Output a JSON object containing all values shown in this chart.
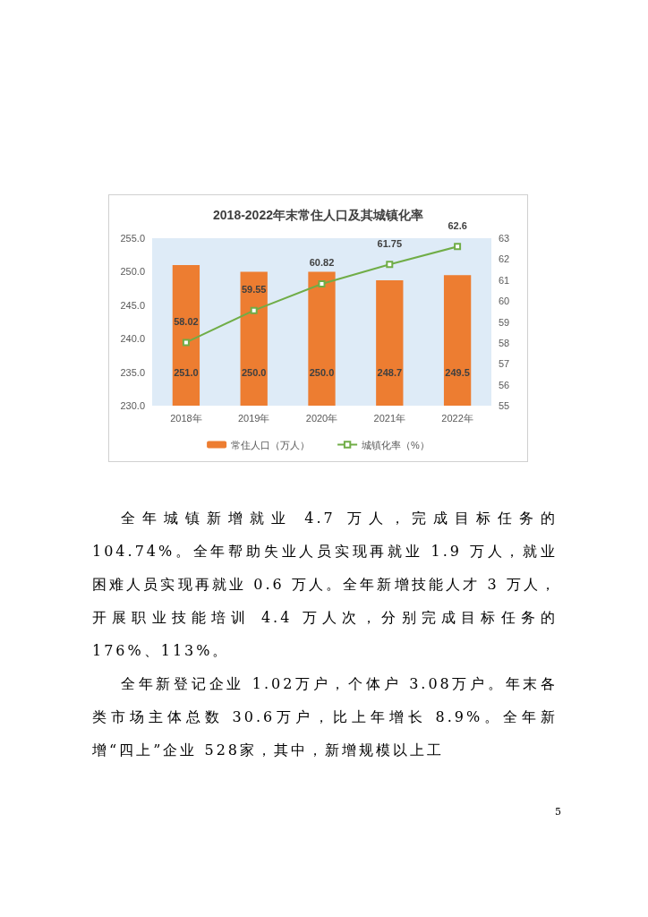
{
  "chart_data": {
    "type": "bar",
    "title": "2018-2022年末常住人口及其城镇化率",
    "categories": [
      "2018年",
      "2019年",
      "2020年",
      "2021年",
      "2022年"
    ],
    "series": [
      {
        "name": "常住人口（万人）",
        "color": "#ed7d31",
        "values": [
          251.0,
          250.0,
          250.0,
          248.7,
          249.5
        ],
        "value_labels": [
          "251.0",
          "250.0",
          "250.0",
          "248.7",
          "249.5"
        ]
      },
      {
        "name": "城镇化率（%）",
        "type": "line",
        "axis": "y2",
        "color": "#70ad47",
        "marker": "square",
        "values": [
          58.02,
          59.55,
          60.82,
          61.75,
          62.6
        ],
        "value_labels": [
          "58.02",
          "59.55",
          "60.82",
          "61.75",
          "62.6"
        ]
      }
    ],
    "ylim": [
      230,
      255
    ],
    "yticks": [
      {
        "value": 230,
        "label": "230.0"
      },
      {
        "value": 235,
        "label": "235.0"
      },
      {
        "value": 240,
        "label": "240.0"
      },
      {
        "value": 245,
        "label": "245.0"
      },
      {
        "value": 250,
        "label": "250.0"
      },
      {
        "value": 255,
        "label": "255.0"
      }
    ],
    "y2lim": [
      55,
      63
    ],
    "y2ticks": [
      55,
      56,
      57,
      58,
      59,
      60,
      61,
      62,
      63
    ],
    "grid": false,
    "legend": "bottom",
    "annotations": [
      "全年城镇新增就业 4.7 万人，完成目标任务的 104.74%。全年帮助失业人员实现再就业 1.9 万人，就业困难人员实现再就业 0.6 万人。全年新增技能人才 3 万人，开展职业技能培训 4.4 万人次，分别完成目标任务的 176%、113%。",
      "全年新登记企业 1.02万户，个体户 3.08万户。年末各类市场主体总数 30.6万户，比上年增长 8.9%。全年新增“四上”企业 528家，其中，新增规模以上工",
      "5"
    ]
  }
}
